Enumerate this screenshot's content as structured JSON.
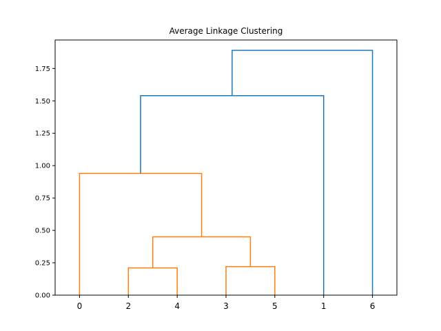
{
  "chart_data": {
    "type": "dendrogram",
    "title": "Average Linkage Clustering",
    "xlabel": "",
    "ylabel": "",
    "leaf_order": [
      "0",
      "2",
      "4",
      "3",
      "5",
      "1",
      "6"
    ],
    "ylim": [
      0,
      1.97
    ],
    "yticks": [
      0.0,
      0.25,
      0.5,
      0.75,
      1.0,
      1.25,
      1.5,
      1.75
    ],
    "ytick_labels": [
      "0.00",
      "0.25",
      "0.50",
      "0.75",
      "1.00",
      "1.25",
      "1.50",
      "1.75"
    ],
    "colors": {
      "cluster": "#ff7f0e",
      "above_threshold": "#1f77b4",
      "axis": "#000000"
    },
    "merges": [
      {
        "left": "2",
        "right": "4",
        "height": 0.21,
        "color": "cluster"
      },
      {
        "left": "3",
        "right": "5",
        "height": 0.22,
        "color": "cluster"
      },
      {
        "left": "(2,4)",
        "right": "(3,5)",
        "height": 0.45,
        "color": "cluster"
      },
      {
        "left": "0",
        "right": "((2,4),(3,5))",
        "height": 0.94,
        "color": "cluster"
      },
      {
        "left": "(0,((2,4),(3,5)))",
        "right": "1",
        "height": 1.54,
        "color": "above_threshold"
      },
      {
        "left": "((0,((2,4),(3,5))),1)",
        "right": "6",
        "height": 1.89,
        "color": "above_threshold"
      }
    ]
  }
}
